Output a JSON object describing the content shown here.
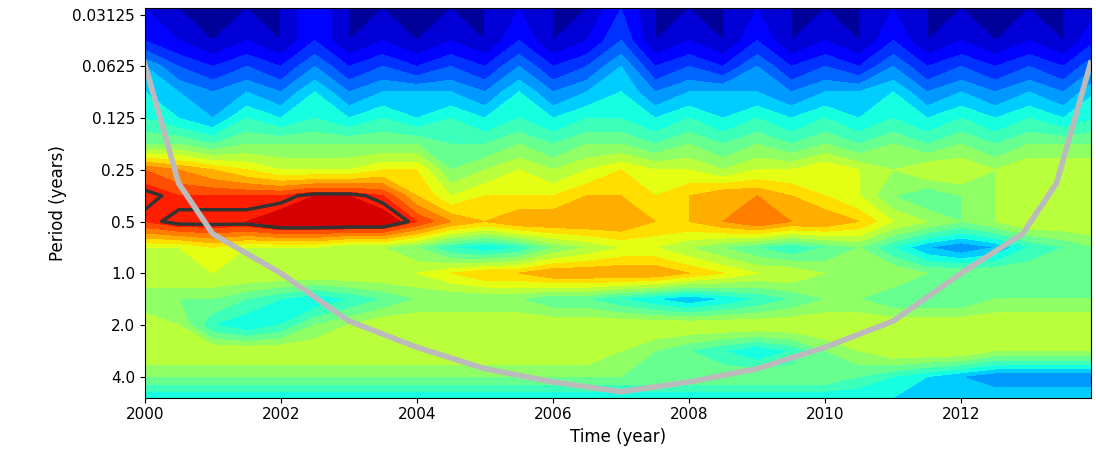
{
  "chart_data": {
    "type": "heatmap",
    "xlabel": "Time (year)",
    "ylabel": "Period (years)",
    "log": "y",
    "xlim": [
      2000,
      2013.9
    ],
    "ylim": [
      5.3,
      0.0287
    ],
    "xticks": [
      2000,
      2002,
      2004,
      2006,
      2008,
      2010,
      2012
    ],
    "yticks": [
      0.03125,
      0.0625,
      0.125,
      0.25,
      0.5,
      {
        "value": 1,
        "label": "1.0"
      },
      {
        "value": 2,
        "label": "2.0"
      },
      {
        "value": 4,
        "label": "4.0"
      }
    ],
    "color_range": [
      0,
      10
    ],
    "significance_level": 8.75,
    "cells": {
      "x": [
        2000,
        2000.5,
        2001,
        2001.5,
        2002,
        2002.5,
        2003,
        2003.5,
        2004,
        2004.5,
        2005,
        2005.5,
        2006,
        2006.5,
        2007,
        2007.5,
        2008,
        2008.5,
        2009,
        2009.5,
        2010,
        2010.5,
        2011,
        2011.5,
        2012,
        2012.5,
        2013,
        2013.5,
        2014
      ],
      "y": [
        0.0287,
        0.0442,
        0.0625,
        0.088,
        0.125,
        0.177,
        0.25,
        0.354,
        0.5,
        0.707,
        1,
        1.41,
        2,
        2.83,
        4,
        5.3
      ],
      "values": [
        [
          1,
          0.5,
          0.5,
          0.5,
          0.5,
          1.5,
          0.5,
          0.5,
          0.5,
          0.5,
          0.5,
          1,
          0.5,
          0.5,
          1.5,
          0.5,
          0.5,
          0.5,
          1,
          0.5,
          0.5,
          0.5,
          1,
          0.5,
          0.5,
          0.5,
          0.5,
          0.5,
          1
        ],
        [
          1.5,
          1,
          0.5,
          1,
          0.5,
          1.5,
          0.5,
          1,
          0.5,
          1,
          0.5,
          1.5,
          0.5,
          1,
          2,
          0.5,
          1,
          0.5,
          1.5,
          0.5,
          1,
          0.5,
          1.5,
          0.5,
          1,
          0.5,
          1,
          0.5,
          1.5
        ],
        [
          3,
          2,
          1.5,
          2,
          1.5,
          2.5,
          1.5,
          2,
          1.5,
          2,
          1.5,
          2.5,
          1.5,
          2,
          3,
          1.5,
          2,
          1.5,
          2.5,
          1.5,
          2,
          1.5,
          2.5,
          1.5,
          2,
          1.5,
          2,
          1.5,
          2.5
        ],
        [
          3.5,
          3,
          2.5,
          3,
          2.5,
          3.5,
          2.5,
          3,
          3,
          3,
          2.5,
          3.5,
          2.5,
          3,
          3.5,
          2.5,
          3,
          3,
          3,
          2.5,
          3,
          3,
          3.5,
          2.5,
          3,
          2.5,
          3,
          2.5,
          3.5
        ],
        [
          4,
          3.5,
          3,
          4,
          3.5,
          4,
          3.5,
          4,
          3.5,
          4,
          3.5,
          4,
          3.5,
          4,
          4,
          3.5,
          4,
          3.5,
          4,
          3.5,
          4,
          3.5,
          4,
          3.5,
          4,
          3.5,
          4,
          3.5,
          4
        ],
        [
          5,
          5,
          4.5,
          5,
          5,
          5,
          5,
          5,
          5,
          4.5,
          4.5,
          5,
          4.5,
          5,
          5,
          4.5,
          5,
          4.5,
          5,
          4.5,
          5,
          4.5,
          5,
          4.5,
          5,
          4.5,
          5,
          5,
          5
        ],
        [
          8,
          7.5,
          7,
          6.5,
          6,
          6,
          6,
          6.5,
          6.5,
          5,
          5.5,
          6,
          5.5,
          6,
          6.5,
          6,
          6,
          5.5,
          6,
          6,
          6.5,
          6,
          5.5,
          6,
          6,
          5.5,
          6,
          6,
          6
        ],
        [
          9,
          8.5,
          8.5,
          8.5,
          8.5,
          9,
          9,
          8.5,
          7,
          6,
          6.5,
          6.5,
          6.5,
          7,
          7,
          6.5,
          7,
          7.5,
          7.5,
          7,
          6.5,
          6,
          5,
          4.5,
          5,
          5.5,
          6,
          6,
          6
        ],
        [
          8.5,
          9,
          9,
          9,
          9.5,
          9.5,
          9.5,
          9.5,
          8.5,
          7.5,
          7,
          7.5,
          7.5,
          7.5,
          7.5,
          7,
          7,
          7.5,
          8,
          7.5,
          7.5,
          7,
          6,
          5.5,
          5,
          5.5,
          6,
          6,
          6
        ],
        [
          6,
          6,
          6.5,
          6,
          6,
          6,
          5.5,
          5.5,
          5,
          4,
          3.5,
          4,
          5,
          5.5,
          6,
          6,
          5.5,
          5,
          4.5,
          4,
          4.5,
          5,
          4,
          3,
          2.5,
          3,
          4,
          4.5,
          5
        ],
        [
          6,
          6,
          6,
          6,
          6,
          6,
          6,
          6,
          6,
          6.5,
          7,
          7,
          7.5,
          7.5,
          7.5,
          7.5,
          7,
          6.5,
          6,
          6,
          5.5,
          5.5,
          5.5,
          5,
          5,
          5,
          5,
          5,
          5
        ],
        [
          5,
          5,
          5,
          4.5,
          4,
          3.5,
          4,
          4.5,
          5,
          5,
          5,
          5,
          4.5,
          4.5,
          4,
          3.5,
          3,
          3.5,
          4,
          4.5,
          5,
          5,
          4.5,
          4.5,
          4.5,
          5,
          5,
          5,
          5
        ],
        [
          6,
          5.5,
          4,
          3.5,
          4,
          5,
          5.5,
          6,
          6,
          6,
          6,
          6,
          6,
          6,
          6,
          6,
          6,
          6,
          6,
          6,
          6,
          6,
          6,
          6,
          6,
          6,
          6,
          6,
          6
        ],
        [
          6,
          6,
          6,
          6,
          6,
          6,
          6,
          6,
          6,
          6,
          6,
          6,
          6,
          6,
          5.5,
          5,
          4.5,
          4,
          3.5,
          4,
          5,
          5.5,
          6,
          6,
          6,
          5.5,
          5.5,
          5.5,
          5.5
        ],
        [
          5,
          5,
          5,
          5,
          5,
          5,
          5,
          5,
          5,
          5,
          5,
          5,
          5,
          5,
          5,
          5,
          5,
          5,
          5,
          5,
          5,
          4.5,
          4,
          3.5,
          3,
          2.5,
          2.5,
          2.5,
          2.5
        ],
        [
          3.5,
          3.5,
          3.5,
          3.5,
          3.5,
          3.5,
          3.5,
          3.5,
          3.5,
          3.5,
          3.5,
          3.5,
          3.5,
          3.5,
          3.5,
          3.5,
          3.5,
          3.5,
          3.5,
          3.5,
          3.5,
          3.5,
          3.5,
          3.5,
          3.5,
          3.5,
          3.5,
          3.5,
          3.5
        ]
      ]
    },
    "cone_of_influence": {
      "x": [
        2000,
        2000.5,
        2001,
        2002,
        2003,
        2004,
        2005,
        2006,
        2007,
        2008,
        2009,
        2010,
        2011,
        2012,
        2012.9,
        2013.4,
        2013.9
      ],
      "y": [
        0.06,
        0.3,
        0.59,
        1.0,
        1.9,
        2.7,
        3.6,
        4.3,
        4.9,
        4.3,
        3.6,
        2.7,
        1.9,
        1.0,
        0.59,
        0.3,
        0.06
      ]
    }
  }
}
